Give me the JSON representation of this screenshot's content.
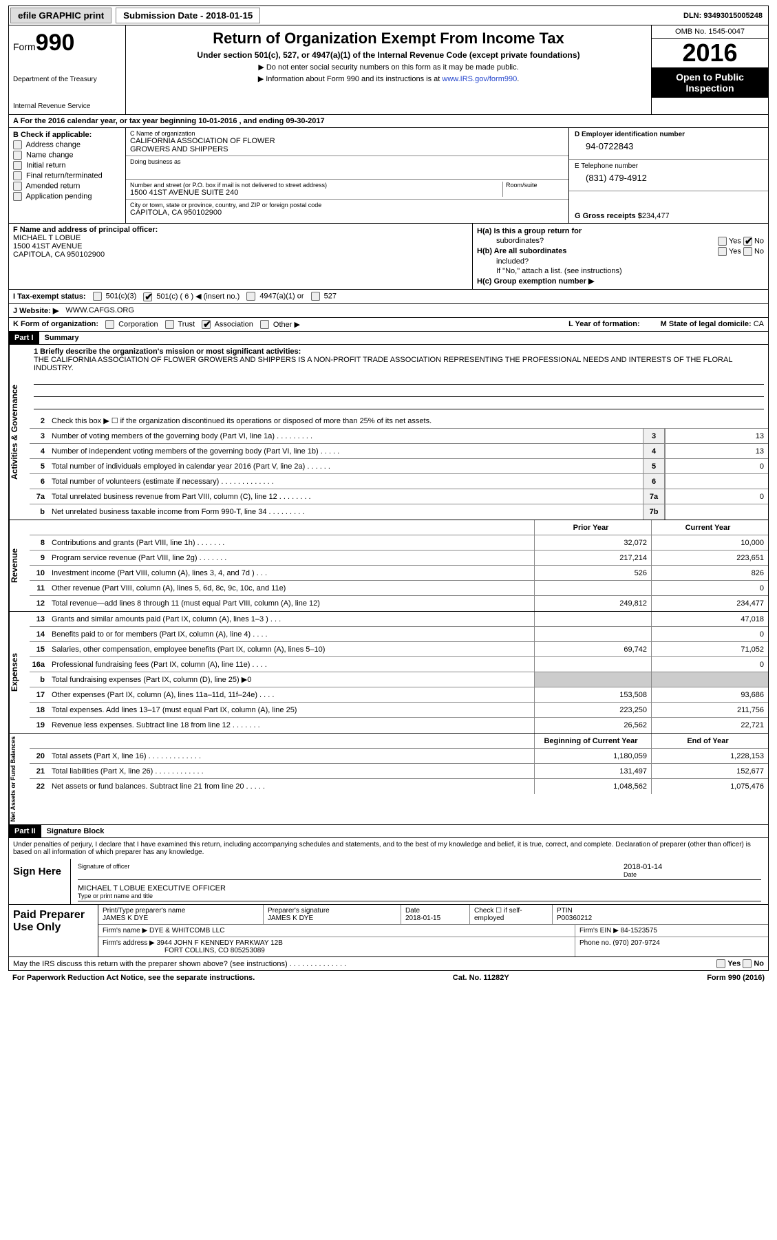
{
  "topbar": {
    "efile_btn": "efile GRAPHIC print",
    "submission_label": "Submission Date - 2018-01-15",
    "dln": "DLN: 93493015005248"
  },
  "header": {
    "form_word": "Form",
    "form_num": "990",
    "dept1": "Department of the Treasury",
    "dept2": "Internal Revenue Service",
    "title": "Return of Organization Exempt From Income Tax",
    "subtitle": "Under section 501(c), 527, or 4947(a)(1) of the Internal Revenue Code (except private foundations)",
    "note1": "▶ Do not enter social security numbers on this form as it may be made public.",
    "note2_pre": "▶ Information about Form 990 and its instructions is at ",
    "note2_link": "www.IRS.gov/form990",
    "omb": "OMB No. 1545-0047",
    "year": "2016",
    "oti1": "Open to Public",
    "oti2": "Inspection"
  },
  "rowA": "A  For the 2016 calendar year, or tax year beginning 10-01-2016   , and ending 09-30-2017",
  "sectionB": {
    "header": "B Check if applicable:",
    "items": [
      "Address change",
      "Name change",
      "Initial return",
      "Final return/terminated",
      "Amended return",
      "Application pending"
    ]
  },
  "sectionC": {
    "name_lbl": "C Name of organization",
    "name1": "CALIFORNIA ASSOCIATION OF FLOWER",
    "name2": "GROWERS AND SHIPPERS",
    "dba_lbl": "Doing business as",
    "addr_lbl": "Number and street (or P.O. box if mail is not delivered to street address)",
    "room_lbl": "Room/suite",
    "addr": "1500 41ST AVENUE SUITE 240",
    "city_lbl": "City or town, state or province, country, and ZIP or foreign postal code",
    "city": "CAPITOLA, CA  950102900"
  },
  "sectionD": {
    "ein_lbl": "D Employer identification number",
    "ein": "94-0722843",
    "tel_lbl": "E Telephone number",
    "tel": "(831) 479-4912",
    "gross_lbl": "G Gross receipts $ ",
    "gross": "234,477"
  },
  "sectionF": {
    "lbl": "F Name and address of principal officer:",
    "name": "MICHAEL T LOBUE",
    "addr1": "1500 41ST AVENUE",
    "addr2": "CAPITOLA, CA  950102900"
  },
  "sectionH": {
    "ha1": "H(a)  Is this a group return for",
    "ha2": "subordinates?",
    "hb1": "H(b)  Are all subordinates",
    "hb2": "included?",
    "hb3": "If \"No,\" attach a list. (see instructions)",
    "hc": "H(c)  Group exemption number ▶",
    "yes": "Yes",
    "no": "No"
  },
  "taxRow": {
    "lbl": "I  Tax-exempt status:",
    "c3": "501(c)(3)",
    "c": "501(c) ( 6 ) ◀ (insert no.)",
    "a1": "4947(a)(1) or",
    "s527": "527"
  },
  "webRow": {
    "lbl": "J  Website: ▶",
    "val": "WWW.CAFGS.ORG"
  },
  "kRow": {
    "lbl": "K Form of organization:",
    "corp": "Corporation",
    "trust": "Trust",
    "assoc": "Association",
    "other": "Other ▶",
    "l_lbl": "L Year of formation:",
    "m_lbl": "M State of legal domicile: ",
    "m_val": "CA"
  },
  "part1": {
    "num": "Part I",
    "title": "Summary",
    "side1": "Activities & Governance",
    "side2": "Revenue",
    "side3": "Expenses",
    "side4": "Net Assets or Fund Balances",
    "brief_lbl": "1  Briefly describe the organization's mission or most significant activities:",
    "brief": "THE CALIFORNIA ASSOCIATION OF FLOWER GROWERS AND SHIPPERS IS A NON-PROFIT TRADE ASSOCIATION REPRESENTING THE PROFESSIONAL NEEDS AND INTERESTS OF THE FLORAL INDUSTRY.",
    "line2": "Check this box ▶ ☐ if the organization discontinued its operations or disposed of more than 25% of its net assets.",
    "rows_gov": [
      {
        "n": "3",
        "t": "Number of voting members of the governing body (Part VI, line 1a)  .    .    .    .    .    .    .    .    .",
        "b": "3",
        "v": "13"
      },
      {
        "n": "4",
        "t": "Number of independent voting members of the governing body (Part VI, line 1b)   .    .    .    .    .",
        "b": "4",
        "v": "13"
      },
      {
        "n": "5",
        "t": "Total number of individuals employed in calendar year 2016 (Part V, line 2a)   .    .    .    .    .    .",
        "b": "5",
        "v": "0"
      },
      {
        "n": "6",
        "t": "Total number of volunteers (estimate if necessary)   .    .    .    .    .    .    .    .    .    .    .    .    .",
        "b": "6",
        "v": ""
      },
      {
        "n": "7a",
        "t": "Total unrelated business revenue from Part VIII, column (C), line 12   .    .    .    .    .    .    .    .",
        "b": "7a",
        "v": "0"
      },
      {
        "n": "b",
        "t": "Net unrelated business taxable income from Form 990-T, line 34   .    .    .    .    .    .    .    .    .",
        "b": "7b",
        "v": ""
      }
    ],
    "col_prior": "Prior Year",
    "col_current": "Current Year",
    "rows_rev": [
      {
        "n": "8",
        "t": "Contributions and grants (Part VIII, line 1h)   .    .    .    .    .    .    .",
        "p": "32,072",
        "c": "10,000"
      },
      {
        "n": "9",
        "t": "Program service revenue (Part VIII, line 2g)   .    .    .    .    .    .    .",
        "p": "217,214",
        "c": "223,651"
      },
      {
        "n": "10",
        "t": "Investment income (Part VIII, column (A), lines 3, 4, and 7d )   .    .    .",
        "p": "526",
        "c": "826"
      },
      {
        "n": "11",
        "t": "Other revenue (Part VIII, column (A), lines 5, 6d, 8c, 9c, 10c, and 11e)",
        "p": "",
        "c": "0"
      },
      {
        "n": "12",
        "t": "Total revenue—add lines 8 through 11 (must equal Part VIII, column (A), line 12)",
        "p": "249,812",
        "c": "234,477"
      }
    ],
    "rows_exp": [
      {
        "n": "13",
        "t": "Grants and similar amounts paid (Part IX, column (A), lines 1–3 )   .    .    .",
        "p": "",
        "c": "47,018"
      },
      {
        "n": "14",
        "t": "Benefits paid to or for members (Part IX, column (A), line 4)   .    .    .    .",
        "p": "",
        "c": "0"
      },
      {
        "n": "15",
        "t": "Salaries, other compensation, employee benefits (Part IX, column (A), lines 5–10)",
        "p": "69,742",
        "c": "71,052"
      },
      {
        "n": "16a",
        "t": "Professional fundraising fees (Part IX, column (A), line 11e)   .    .    .    .",
        "p": "",
        "c": "0"
      },
      {
        "n": "b",
        "t": "Total fundraising expenses (Part IX, column (D), line 25) ▶0",
        "p": "grey",
        "c": "grey"
      },
      {
        "n": "17",
        "t": "Other expenses (Part IX, column (A), lines 11a–11d, 11f–24e)   .    .    .    .",
        "p": "153,508",
        "c": "93,686"
      },
      {
        "n": "18",
        "t": "Total expenses. Add lines 13–17 (must equal Part IX, column (A), line 25)",
        "p": "223,250",
        "c": "211,756"
      },
      {
        "n": "19",
        "t": "Revenue less expenses. Subtract line 18 from line 12 .    .    .    .    .    .    .",
        "p": "26,562",
        "c": "22,721"
      }
    ],
    "col_begin": "Beginning of Current Year",
    "col_end": "End of Year",
    "rows_net": [
      {
        "n": "20",
        "t": "Total assets (Part X, line 16)   .    .    .    .    .    .    .    .    .    .    .    .    .",
        "p": "1,180,059",
        "c": "1,228,153"
      },
      {
        "n": "21",
        "t": "Total liabilities (Part X, line 26)   .    .    .    .    .    .    .    .    .    .    .    .",
        "p": "131,497",
        "c": "152,677"
      },
      {
        "n": "22",
        "t": "Net assets or fund balances. Subtract line 21 from line 20   .    .    .    .    .",
        "p": "1,048,562",
        "c": "1,075,476"
      }
    ]
  },
  "part2": {
    "num": "Part II",
    "title": "Signature Block",
    "decl": "Under penalties of perjury, I declare that I have examined this return, including accompanying schedules and statements, and to the best of my knowledge and belief, it is true, correct, and complete. Declaration of preparer (other than officer) is based on all information of which preparer has any knowledge.",
    "sign_here": "Sign Here",
    "sig_officer": "Signature of officer",
    "sig_date": "2018-01-14",
    "date_lbl": "Date",
    "officer_name": "MICHAEL T LOBUE  EXECUTIVE OFFICER",
    "type_lbl": "Type or print name and title",
    "paid": "Paid Preparer Use Only",
    "prep_name_lbl": "Print/Type preparer's name",
    "prep_name": "JAMES K DYE",
    "prep_sig_lbl": "Preparer's signature",
    "prep_sig": "JAMES K DYE",
    "prep_date_lbl": "Date",
    "prep_date": "2018-01-15",
    "check_lbl": "Check ☐ if self-employed",
    "ptin_lbl": "PTIN",
    "ptin": "P00360212",
    "firm_name_lbl": "Firm's name    ▶ ",
    "firm_name": "DYE & WHITCOMB LLC",
    "firm_ein_lbl": "Firm's EIN ▶ ",
    "firm_ein": "84-1523575",
    "firm_addr_lbl": "Firm's address ▶ ",
    "firm_addr1": "3944 JOHN F KENNEDY PARKWAY 12B",
    "firm_addr2": "FORT COLLINS, CO  805253089",
    "phone_lbl": "Phone no. ",
    "phone": "(970) 207-9724"
  },
  "footer": {
    "discuss": "May the IRS discuss this return with the preparer shown above? (see instructions)   .    .    .    .    .    .    .    .    .    .    .    .    .    .",
    "yes": "Yes",
    "no": "No",
    "paperwork": "For Paperwork Reduction Act Notice, see the separate instructions.",
    "cat": "Cat. No. 11282Y",
    "form": "Form 990 (2016)"
  },
  "colors": {
    "link": "#2244cc",
    "black": "#000000",
    "grey_bg": "#cccccc"
  }
}
